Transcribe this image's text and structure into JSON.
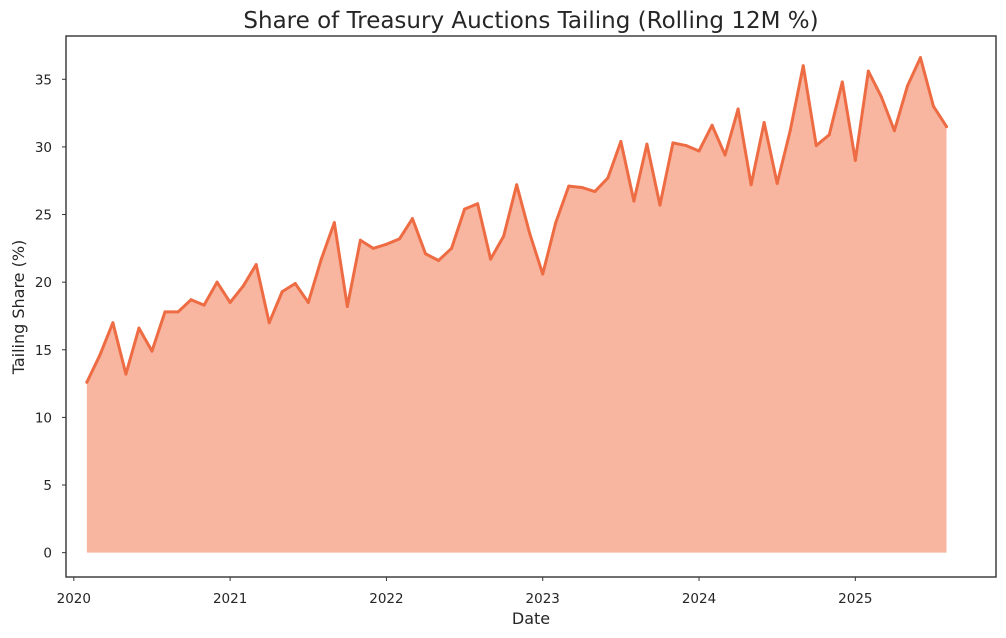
{
  "chart_data": {
    "type": "area",
    "title": "Share of Treasury Auctions Tailing (Rolling 12M %)",
    "xlabel": "Date",
    "ylabel": "Tailing Share (%)",
    "xlim": [
      2019.95,
      2025.9
    ],
    "ylim": [
      -1.8,
      38.2
    ],
    "x_ticks": [
      2020,
      2021,
      2022,
      2023,
      2024,
      2025
    ],
    "x_tick_labels": [
      "2020",
      "2021",
      "2022",
      "2023",
      "2024",
      "2025"
    ],
    "y_ticks": [
      0,
      5,
      10,
      15,
      20,
      25,
      30,
      35
    ],
    "y_tick_labels": [
      "0",
      "5",
      "10",
      "15",
      "20",
      "25",
      "30",
      "35"
    ],
    "grid": false,
    "colors": {
      "line": "#ee6c43",
      "fill": "#f8b5a0"
    },
    "series": [
      {
        "name": "Tailing Share (%)",
        "x": [
          "2020-01",
          "2020-02",
          "2020-03",
          "2020-04",
          "2020-05",
          "2020-06",
          "2020-07",
          "2020-08",
          "2020-09",
          "2020-10",
          "2020-11",
          "2020-12",
          "2021-01",
          "2021-02",
          "2021-03",
          "2021-04",
          "2021-05",
          "2021-06",
          "2021-07",
          "2021-08",
          "2021-09",
          "2021-10",
          "2021-11",
          "2021-12",
          "2022-01",
          "2022-02",
          "2022-03",
          "2022-04",
          "2022-05",
          "2022-06",
          "2022-07",
          "2022-08",
          "2022-09",
          "2022-10",
          "2022-11",
          "2022-12",
          "2023-01",
          "2023-02",
          "2023-03",
          "2023-04",
          "2023-05",
          "2023-06",
          "2023-07",
          "2023-08",
          "2023-09",
          "2023-10",
          "2023-11",
          "2023-12",
          "2024-01",
          "2024-02",
          "2024-03",
          "2024-04",
          "2024-05",
          "2024-06",
          "2024-07",
          "2024-08",
          "2024-09",
          "2024-10",
          "2024-11",
          "2024-12",
          "2025-01",
          "2025-02",
          "2025-03",
          "2025-04",
          "2025-05",
          "2025-06",
          "2025-07"
        ],
        "values": [
          12.6,
          14.6,
          17.0,
          13.2,
          16.6,
          14.9,
          17.8,
          17.8,
          18.7,
          18.3,
          20.0,
          18.5,
          19.7,
          21.3,
          17.0,
          19.3,
          19.9,
          18.5,
          21.7,
          24.4,
          18.2,
          23.1,
          22.5,
          22.8,
          23.2,
          24.7,
          22.1,
          21.6,
          22.5,
          25.4,
          25.8,
          21.7,
          23.4,
          27.2,
          23.6,
          20.6,
          24.4,
          27.1,
          27.0,
          26.7,
          27.7,
          30.4,
          26.0,
          30.2,
          25.7,
          30.3,
          30.1,
          29.7,
          31.6,
          29.4,
          32.8,
          27.2,
          31.8,
          27.3,
          31.2,
          36.0,
          30.1,
          30.9,
          34.8,
          29.0,
          35.6,
          33.7,
          31.2,
          34.5,
          36.6,
          33.0,
          31.5
        ]
      }
    ]
  }
}
